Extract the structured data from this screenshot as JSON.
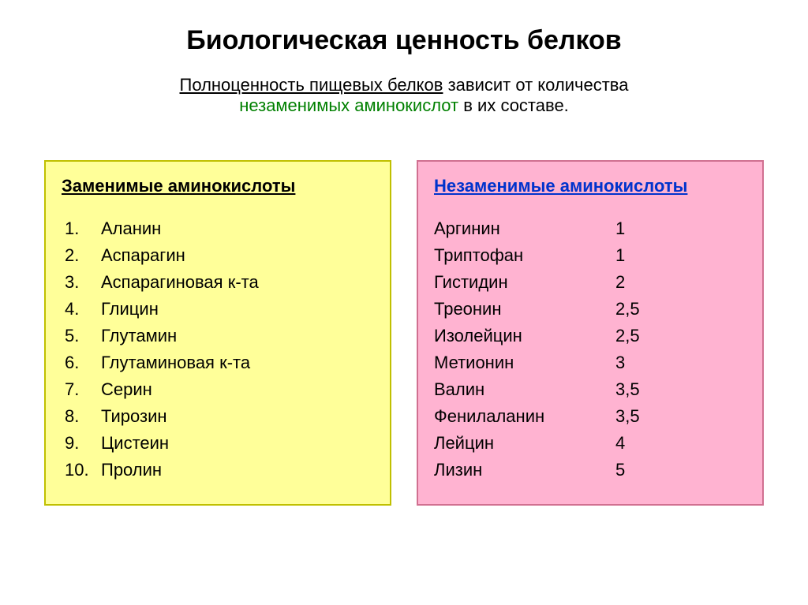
{
  "title": {
    "text": "Биологическая ценность белков",
    "fontsize": 34,
    "color": "#000000",
    "weight": "bold"
  },
  "subtitle": {
    "part1_underlined": "Полноценность пищевых белков",
    "part1_rest": " зависит от количества",
    "part2_essential": "незаменимых аминокислот",
    "part2_rest": " в их составе.",
    "fontsize": 22,
    "essential_color": "#008000"
  },
  "left_panel": {
    "background_color": "#ffff99",
    "border_color": "#c0c000",
    "heading": "Заменимые аминокислоты",
    "heading_color": "#000000",
    "fontsize": 22,
    "items": [
      {
        "n": "1.",
        "name": "Аланин"
      },
      {
        "n": "2.",
        "name": "Аспарагин"
      },
      {
        "n": "3.",
        "name": "Аспарагиновая к-та"
      },
      {
        "n": "4.",
        "name": "Глицин"
      },
      {
        "n": "5.",
        "name": "Глутамин"
      },
      {
        "n": "6.",
        "name": "Глутаминовая к-та"
      },
      {
        "n": "7.",
        "name": "Серин"
      },
      {
        "n": "8.",
        "name": "Тирозин"
      },
      {
        "n": "9.",
        "name": "Цистеин"
      },
      {
        "n": "10.",
        "name": "Пролин"
      }
    ]
  },
  "right_panel": {
    "background_color": "#ffb3d1",
    "border_color": "#d07090",
    "heading": "Незаменимые аминокислоты",
    "heading_color": "#0033cc",
    "fontsize": 22,
    "items": [
      {
        "name": "Аргинин",
        "value": "1"
      },
      {
        "name": "Триптофан",
        "value": "1"
      },
      {
        "name": "Гистидин",
        "value": "2"
      },
      {
        "name": "Треонин",
        "value": "2,5"
      },
      {
        "name": "Изолейцин",
        "value": "2,5"
      },
      {
        "name": "Метионин",
        "value": "3"
      },
      {
        "name": "Валин",
        "value": "3,5"
      },
      {
        "name": "Фенилаланин",
        "value": "3,5"
      },
      {
        "name": "Лейцин",
        "value": "4"
      },
      {
        "name": "Лизин",
        "value": "5"
      }
    ]
  }
}
